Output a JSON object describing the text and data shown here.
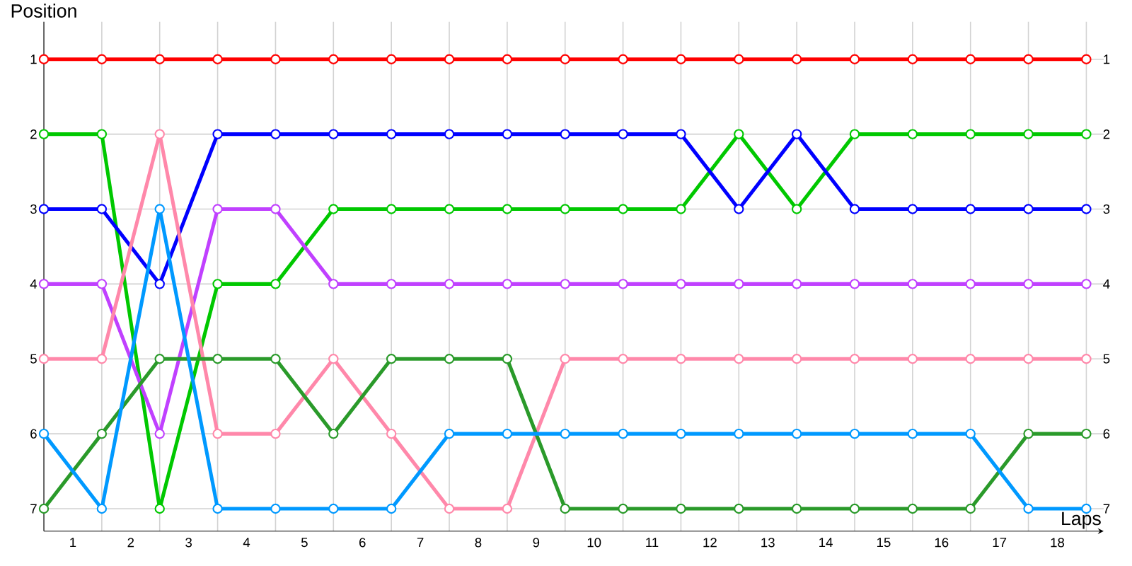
{
  "chart_data": {
    "type": "line",
    "xlabel": "Laps",
    "ylabel": "Position",
    "x": [
      0,
      1,
      2,
      3,
      4,
      5,
      6,
      7,
      8,
      9,
      10,
      11,
      12,
      13,
      14,
      15,
      16,
      17,
      18
    ],
    "xlim": [
      0,
      18.3
    ],
    "ylim": [
      7.3,
      0.5
    ],
    "y2lim": [
      7.3,
      0.5
    ],
    "xticks": [
      {
        "value": 0,
        "label": null
      },
      {
        "value": 1,
        "label": null
      },
      {
        "value": 2,
        "label": null
      },
      {
        "value": 3,
        "label": null
      },
      {
        "value": 4,
        "label": null
      },
      {
        "value": 5,
        "label": null
      },
      {
        "value": 6,
        "label": null
      },
      {
        "value": 7,
        "label": null
      },
      {
        "value": 8,
        "label": null
      },
      {
        "value": 9,
        "label": null
      },
      {
        "value": 10,
        "label": null
      },
      {
        "value": 11,
        "label": null
      },
      {
        "value": 12,
        "label": null
      },
      {
        "value": 13,
        "label": null
      },
      {
        "value": 14,
        "label": null
      },
      {
        "value": 15,
        "label": null
      },
      {
        "value": 16,
        "label": null
      },
      {
        "value": 17,
        "label": null
      },
      {
        "value": 18,
        "label": null
      },
      {
        "value": 0.5,
        "label": "1"
      },
      {
        "value": 1.5,
        "label": "2"
      },
      {
        "value": 2.5,
        "label": "3"
      },
      {
        "value": 3.5,
        "label": "4"
      },
      {
        "value": 4.5,
        "label": "5"
      },
      {
        "value": 5.5,
        "label": "6"
      },
      {
        "value": 6.5,
        "label": "7"
      },
      {
        "value": 7.5,
        "label": "8"
      },
      {
        "value": 8.5,
        "label": "9"
      },
      {
        "value": 9.5,
        "label": "10"
      },
      {
        "value": 10.5,
        "label": "11"
      },
      {
        "value": 11.5,
        "label": "12"
      },
      {
        "value": 12.5,
        "label": "13"
      },
      {
        "value": 13.5,
        "label": "14"
      },
      {
        "value": 14.5,
        "label": "15"
      },
      {
        "value": 15.5,
        "label": "16"
      },
      {
        "value": 16.5,
        "label": "17"
      },
      {
        "value": 17.5,
        "label": "18"
      }
    ],
    "yticks": [
      1,
      2,
      3,
      4,
      5,
      6,
      7
    ],
    "y2ticks": [
      1,
      2,
      3,
      4,
      5,
      6,
      7
    ],
    "grid": true,
    "marker": "circle",
    "line_style": "solid",
    "series": [
      {
        "color": "#ff0000",
        "values": [
          1,
          1,
          1,
          1,
          1,
          1,
          1,
          1,
          1,
          1,
          1,
          1,
          1,
          1,
          1,
          1,
          1,
          1,
          1
        ]
      },
      {
        "color": "#00c800",
        "values": [
          2,
          2,
          7,
          4,
          4,
          3,
          3,
          3,
          3,
          3,
          3,
          3,
          2,
          3,
          2,
          2,
          2,
          2,
          2
        ]
      },
      {
        "color": "#0000ff",
        "values": [
          3,
          3,
          4,
          2,
          2,
          2,
          2,
          2,
          2,
          2,
          2,
          2,
          3,
          2,
          3,
          3,
          3,
          3,
          3
        ]
      },
      {
        "color": "#c040ff",
        "values": [
          4,
          4,
          6,
          3,
          3,
          4,
          4,
          4,
          4,
          4,
          4,
          4,
          4,
          4,
          4,
          4,
          4,
          4,
          4
        ]
      },
      {
        "color": "#ff88aa",
        "values": [
          5,
          5,
          2,
          6,
          6,
          5,
          6,
          7,
          7,
          5,
          5,
          5,
          5,
          5,
          5,
          5,
          5,
          5,
          5
        ]
      },
      {
        "color": "#2a9a2a",
        "values": [
          7,
          6,
          5,
          5,
          5,
          6,
          5,
          5,
          5,
          7,
          7,
          7,
          7,
          7,
          7,
          7,
          7,
          6,
          6
        ]
      },
      {
        "color": "#0099ff",
        "values": [
          6,
          7,
          3,
          7,
          7,
          7,
          7,
          6,
          6,
          6,
          6,
          6,
          6,
          6,
          6,
          6,
          6,
          7,
          7
        ]
      }
    ]
  }
}
